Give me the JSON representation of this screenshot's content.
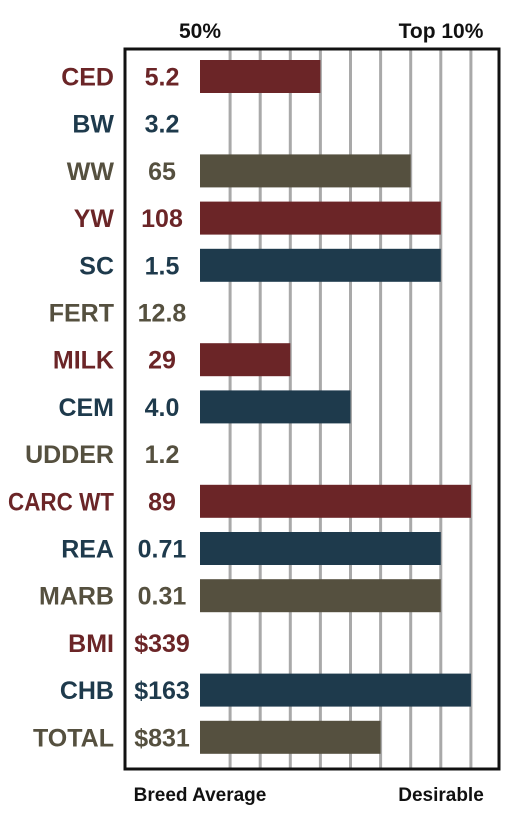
{
  "chart_data": {
    "type": "bar",
    "orientation": "horizontal",
    "top_labels": [
      "50%",
      "Top 10%"
    ],
    "bottom_labels": [
      "Breed Average",
      "Desirable"
    ],
    "scale_note": "bars measured in gridline units from the Breed Average line (0) to the Desirable line (9); 50% at 0, Top 10% at 8",
    "gridlines": 9,
    "colors": {
      "red": "#6b2527",
      "blue": "#1e3a4c",
      "gray": "#55503f"
    },
    "rows": [
      {
        "trait": "CED",
        "value": "5.2",
        "bar": 4,
        "color": "red"
      },
      {
        "trait": "BW",
        "value": "3.2",
        "bar": 0,
        "color": "blue"
      },
      {
        "trait": "WW",
        "value": "65",
        "bar": 7,
        "color": "gray"
      },
      {
        "trait": "YW",
        "value": "108",
        "bar": 8,
        "color": "red"
      },
      {
        "trait": "SC",
        "value": "1.5",
        "bar": 8,
        "color": "blue"
      },
      {
        "trait": "FERT",
        "value": "12.8",
        "bar": 0,
        "color": "gray"
      },
      {
        "trait": "MILK",
        "value": "29",
        "bar": 3,
        "color": "red"
      },
      {
        "trait": "CEM",
        "value": "4.0",
        "bar": 5,
        "color": "blue"
      },
      {
        "trait": "UDDER",
        "value": "1.2",
        "bar": 0,
        "color": "gray"
      },
      {
        "trait": "CARC WT",
        "value": "89",
        "bar": 9,
        "color": "red"
      },
      {
        "trait": "REA",
        "value": "0.71",
        "bar": 8,
        "color": "blue"
      },
      {
        "trait": "MARB",
        "value": "0.31",
        "bar": 8,
        "color": "gray"
      },
      {
        "trait": "BMI",
        "value": "$339",
        "bar": 0,
        "color": "red"
      },
      {
        "trait": "CHB",
        "value": "$163",
        "bar": 9,
        "color": "blue"
      },
      {
        "trait": "TOTAL",
        "value": "$831",
        "bar": 6,
        "color": "gray"
      }
    ]
  }
}
